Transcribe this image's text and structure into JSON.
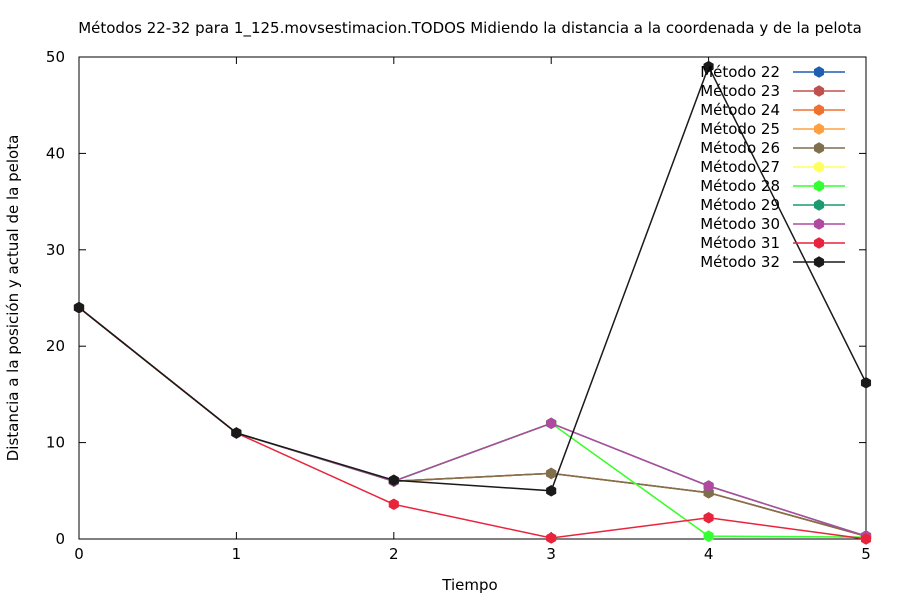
{
  "chart_data": {
    "type": "line",
    "title": "Métodos 22-32 para 1_125.movsestimacion.TODOS Midiendo la distancia a la coordenada y de la pelota",
    "xlabel": "Tiempo",
    "ylabel": "Distancia a la posición y actual de la pelota",
    "xlim": [
      0,
      5
    ],
    "ylim": [
      0,
      50
    ],
    "x_ticks": [
      "0",
      "1",
      "2",
      "3",
      "4",
      "5"
    ],
    "y_ticks": [
      "0",
      "10",
      "20",
      "30",
      "40",
      "50"
    ],
    "legend_position": "top-right",
    "x": [
      0,
      1,
      2,
      3,
      4,
      5
    ],
    "series": [
      {
        "name": "Método 22",
        "color": "#1f5fb3",
        "values": [
          24,
          11,
          6,
          6.8,
          4.8,
          0.3
        ]
      },
      {
        "name": "Método 23",
        "color": "#c0504d",
        "values": [
          24,
          11,
          6,
          6.8,
          4.8,
          0.3
        ]
      },
      {
        "name": "Método 24",
        "color": "#f07030",
        "values": [
          24,
          11,
          6,
          6.8,
          4.8,
          0.3
        ]
      },
      {
        "name": "Método 25",
        "color": "#ffa040",
        "values": [
          24,
          11,
          6,
          6.8,
          4.8,
          0.3
        ]
      },
      {
        "name": "Método 26",
        "color": "#7e6f4f",
        "values": [
          24,
          11,
          6,
          6.8,
          4.8,
          0.3
        ]
      },
      {
        "name": "Método 27",
        "color": "#ffff60",
        "values": [
          24,
          11,
          6,
          12,
          0.3,
          0.2
        ]
      },
      {
        "name": "Método 28",
        "color": "#33ff33",
        "values": [
          24,
          11,
          6,
          12,
          0.3,
          0.2
        ]
      },
      {
        "name": "Método 29",
        "color": "#1a9a70",
        "values": [
          24,
          11,
          6,
          12,
          5.5,
          0.3
        ]
      },
      {
        "name": "Método 30",
        "color": "#b04aa0",
        "values": [
          24,
          11,
          6,
          12,
          5.5,
          0.3
        ]
      },
      {
        "name": "Método 31",
        "color": "#e8243c",
        "values": [
          24,
          11,
          3.6,
          0.1,
          2.2,
          0
        ]
      },
      {
        "name": "Método 32",
        "color": "#1a1a1a",
        "values": [
          24,
          11,
          6.1,
          5,
          49,
          16.2
        ]
      }
    ]
  }
}
